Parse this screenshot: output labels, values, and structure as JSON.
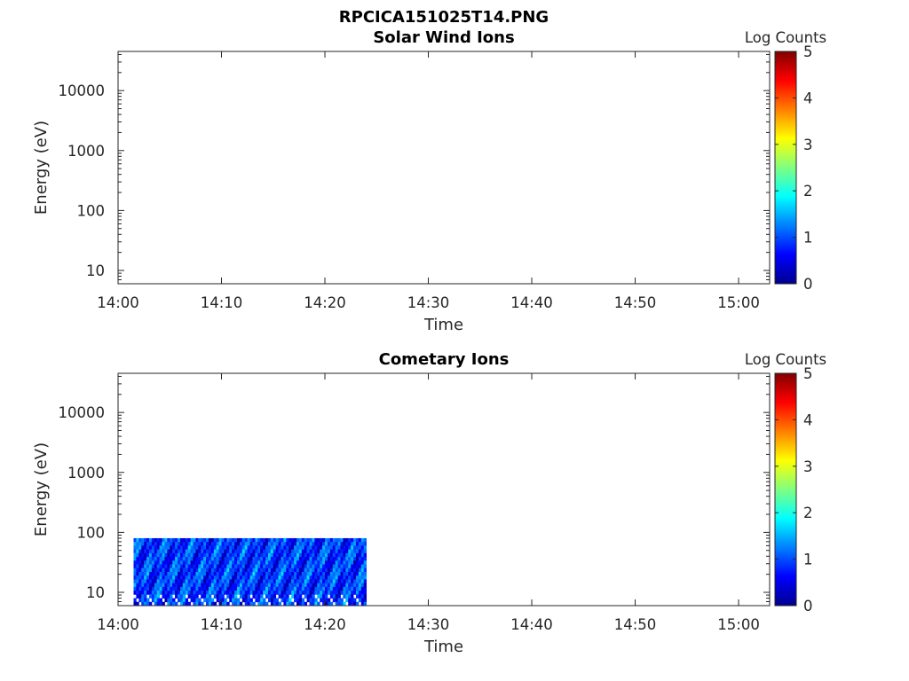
{
  "figure_title": "RPCICA151025T14.PNG",
  "colorbar": {
    "label": "Log Counts",
    "ticks": [
      "0",
      "1",
      "2",
      "3",
      "4",
      "5"
    ],
    "range": [
      0,
      5
    ],
    "colormap": "jet"
  },
  "chart_data": [
    {
      "type": "heatmap",
      "title": "Solar Wind Ions",
      "xlabel": "Time",
      "ylabel": "Energy (eV)",
      "x_tick_labels": [
        "14:00",
        "14:10",
        "14:20",
        "14:30",
        "14:40",
        "14:50",
        "15:00"
      ],
      "x_range": [
        "14:00",
        "15:03"
      ],
      "y_scale": "log",
      "y_tick_labels": [
        "10",
        "100",
        "1000",
        "10000"
      ],
      "y_range": [
        6,
        45000
      ],
      "data_present": false,
      "cells": []
    },
    {
      "type": "heatmap",
      "title": "Cometary Ions",
      "xlabel": "Time",
      "ylabel": "Energy (eV)",
      "x_tick_labels": [
        "14:00",
        "14:10",
        "14:20",
        "14:30",
        "14:40",
        "14:50",
        "15:00"
      ],
      "x_range": [
        "14:00",
        "15:03"
      ],
      "y_scale": "log",
      "y_tick_labels": [
        "10",
        "100",
        "1000",
        "10000"
      ],
      "y_range": [
        6,
        45000
      ],
      "data_present": true,
      "data_time_range": [
        "14:01:30",
        "14:24:00"
      ],
      "data_energy_range": [
        6,
        80
      ],
      "cells": [
        {
          "t": "14:02",
          "e": 70,
          "log_counts": 1.0
        },
        {
          "t": "14:03",
          "e": 50,
          "log_counts": 1.6
        },
        {
          "t": "14:04",
          "e": 40,
          "log_counts": 1.2
        },
        {
          "t": "14:05",
          "e": 30,
          "log_counts": 1.4
        },
        {
          "t": "14:06",
          "e": 60,
          "log_counts": 1.0
        },
        {
          "t": "14:08",
          "e": 30,
          "log_counts": 1.5
        },
        {
          "t": "14:10",
          "e": 50,
          "log_counts": 1.7
        },
        {
          "t": "14:12",
          "e": 30,
          "log_counts": 1.3
        },
        {
          "t": "14:14",
          "e": 40,
          "log_counts": 1.5
        },
        {
          "t": "14:16",
          "e": 20,
          "log_counts": 1.1
        },
        {
          "t": "14:18",
          "e": 60,
          "log_counts": 1.2
        },
        {
          "t": "14:20",
          "e": 40,
          "log_counts": 1.0
        },
        {
          "t": "14:22",
          "e": 30,
          "log_counts": 1.2
        },
        {
          "t": "14:23",
          "e": 70,
          "log_counts": 1.8
        }
      ]
    }
  ]
}
